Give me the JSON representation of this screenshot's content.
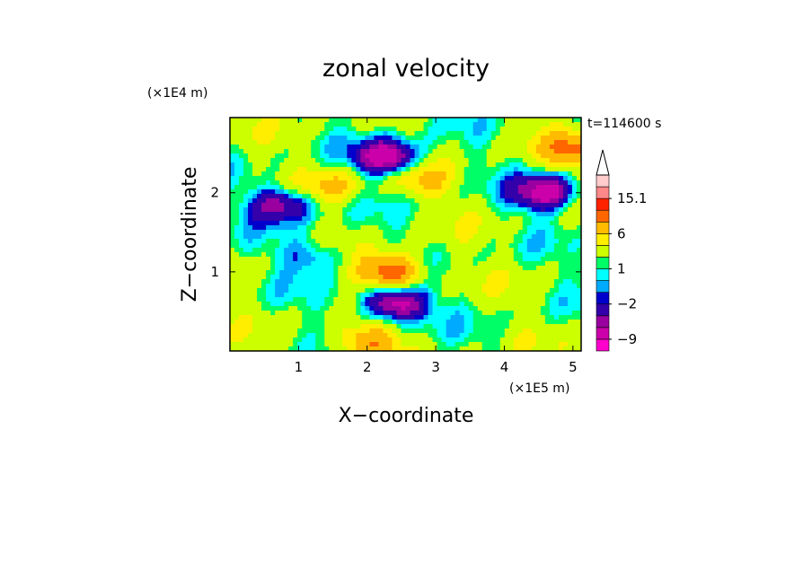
{
  "chart_data": {
    "type": "heatmap",
    "title": "zonal velocity",
    "xlabel": "X−coordinate",
    "ylabel": "Z−coordinate",
    "x_scale_label": "(×1E5 m)",
    "y_scale_label": "(×1E4 m)",
    "time_label": "t=114600 s",
    "xlim": [
      0,
      5.12
    ],
    "ylim": [
      0,
      2.95
    ],
    "x_ticks": [
      1,
      2,
      3,
      4,
      5
    ],
    "y_ticks": [
      1,
      2
    ],
    "x_tick_labels": [
      "1",
      "2",
      "3",
      "4",
      "5"
    ],
    "y_tick_labels": [
      "1",
      "2"
    ],
    "colorbar": {
      "levels": [
        -12,
        -9,
        -6,
        -4,
        -2,
        -1,
        0,
        1,
        2,
        4,
        6,
        9,
        12,
        15.1
      ],
      "colors": [
        "#ff00cc",
        "#cc00aa",
        "#99009f",
        "#3300aa",
        "#0000cc",
        "#00aaff",
        "#00ffff",
        "#00ff66",
        "#ccff00",
        "#ffee00",
        "#ffbb00",
        "#ff6600",
        "#ff2200",
        "#ff8888",
        "#ffcccc"
      ],
      "labels": [
        "15.1",
        "6",
        "1",
        "−2",
        "−9"
      ],
      "label_values": [
        15.1,
        6,
        1,
        -2,
        -9
      ],
      "extend": "max"
    },
    "field_features": [
      {
        "x": 2.35,
        "z": 1.0,
        "value": 12,
        "shape": "tilted orange/red band"
      },
      {
        "x": 2.4,
        "z": 0.6,
        "value": -9,
        "shape": "tilted blue jet"
      },
      {
        "x": 2.3,
        "z": 2.45,
        "value": -9,
        "shape": "horizontal blue band"
      },
      {
        "x": 4.6,
        "z": 2.0,
        "value": -8,
        "shape": "horizontal blue band"
      },
      {
        "x": 0.75,
        "z": 1.85,
        "value": -6,
        "shape": "blue patch"
      },
      {
        "x": 1.5,
        "z": 2.1,
        "value": 6,
        "shape": "orange band"
      },
      {
        "x": 2.8,
        "z": 2.15,
        "value": 6,
        "shape": "orange band"
      },
      {
        "x": 1.2,
        "z": 1.2,
        "value": -2,
        "shape": "cyan patch"
      },
      {
        "x": 2.0,
        "z": 0.1,
        "value": 9,
        "shape": "orange patch"
      },
      {
        "x": 5.0,
        "z": 2.55,
        "value": 9,
        "shape": "red patch"
      }
    ]
  }
}
